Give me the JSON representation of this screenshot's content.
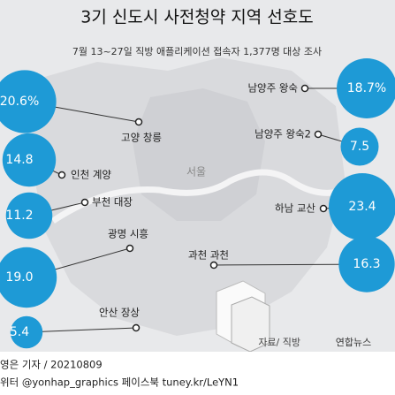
{
  "chart_data": {
    "type": "bubble",
    "title": "3기 신도시 사전청약 지역 선호도",
    "subtitle": "7월 13~27일 직방 애플리케이션 접속자 1,377명 대상 조사",
    "categories": [
      "고양 창릉",
      "인천 계양",
      "부천 대장",
      "광명 시흥",
      "안산 장상",
      "남양주 왕숙",
      "남양주 왕숙2",
      "하남 교산",
      "과천 과천"
    ],
    "values": [
      20.6,
      14.8,
      11.2,
      19.0,
      5.4,
      18.7,
      7.5,
      23.4,
      16.3
    ],
    "value_labels": [
      "20.6%",
      "14.8",
      "11.2",
      "19.0",
      "5.4",
      "18.7%",
      "7.5",
      "23.4",
      "16.3"
    ],
    "color": "#1e9ad6",
    "map_label": "서울",
    "source": "자료/ 직방",
    "agency": "연합뉴스",
    "credit": "영은 기자 / 20210809",
    "social": "위터 @yonhap_graphics  페이스북 tuney.kr/LeYN1"
  }
}
